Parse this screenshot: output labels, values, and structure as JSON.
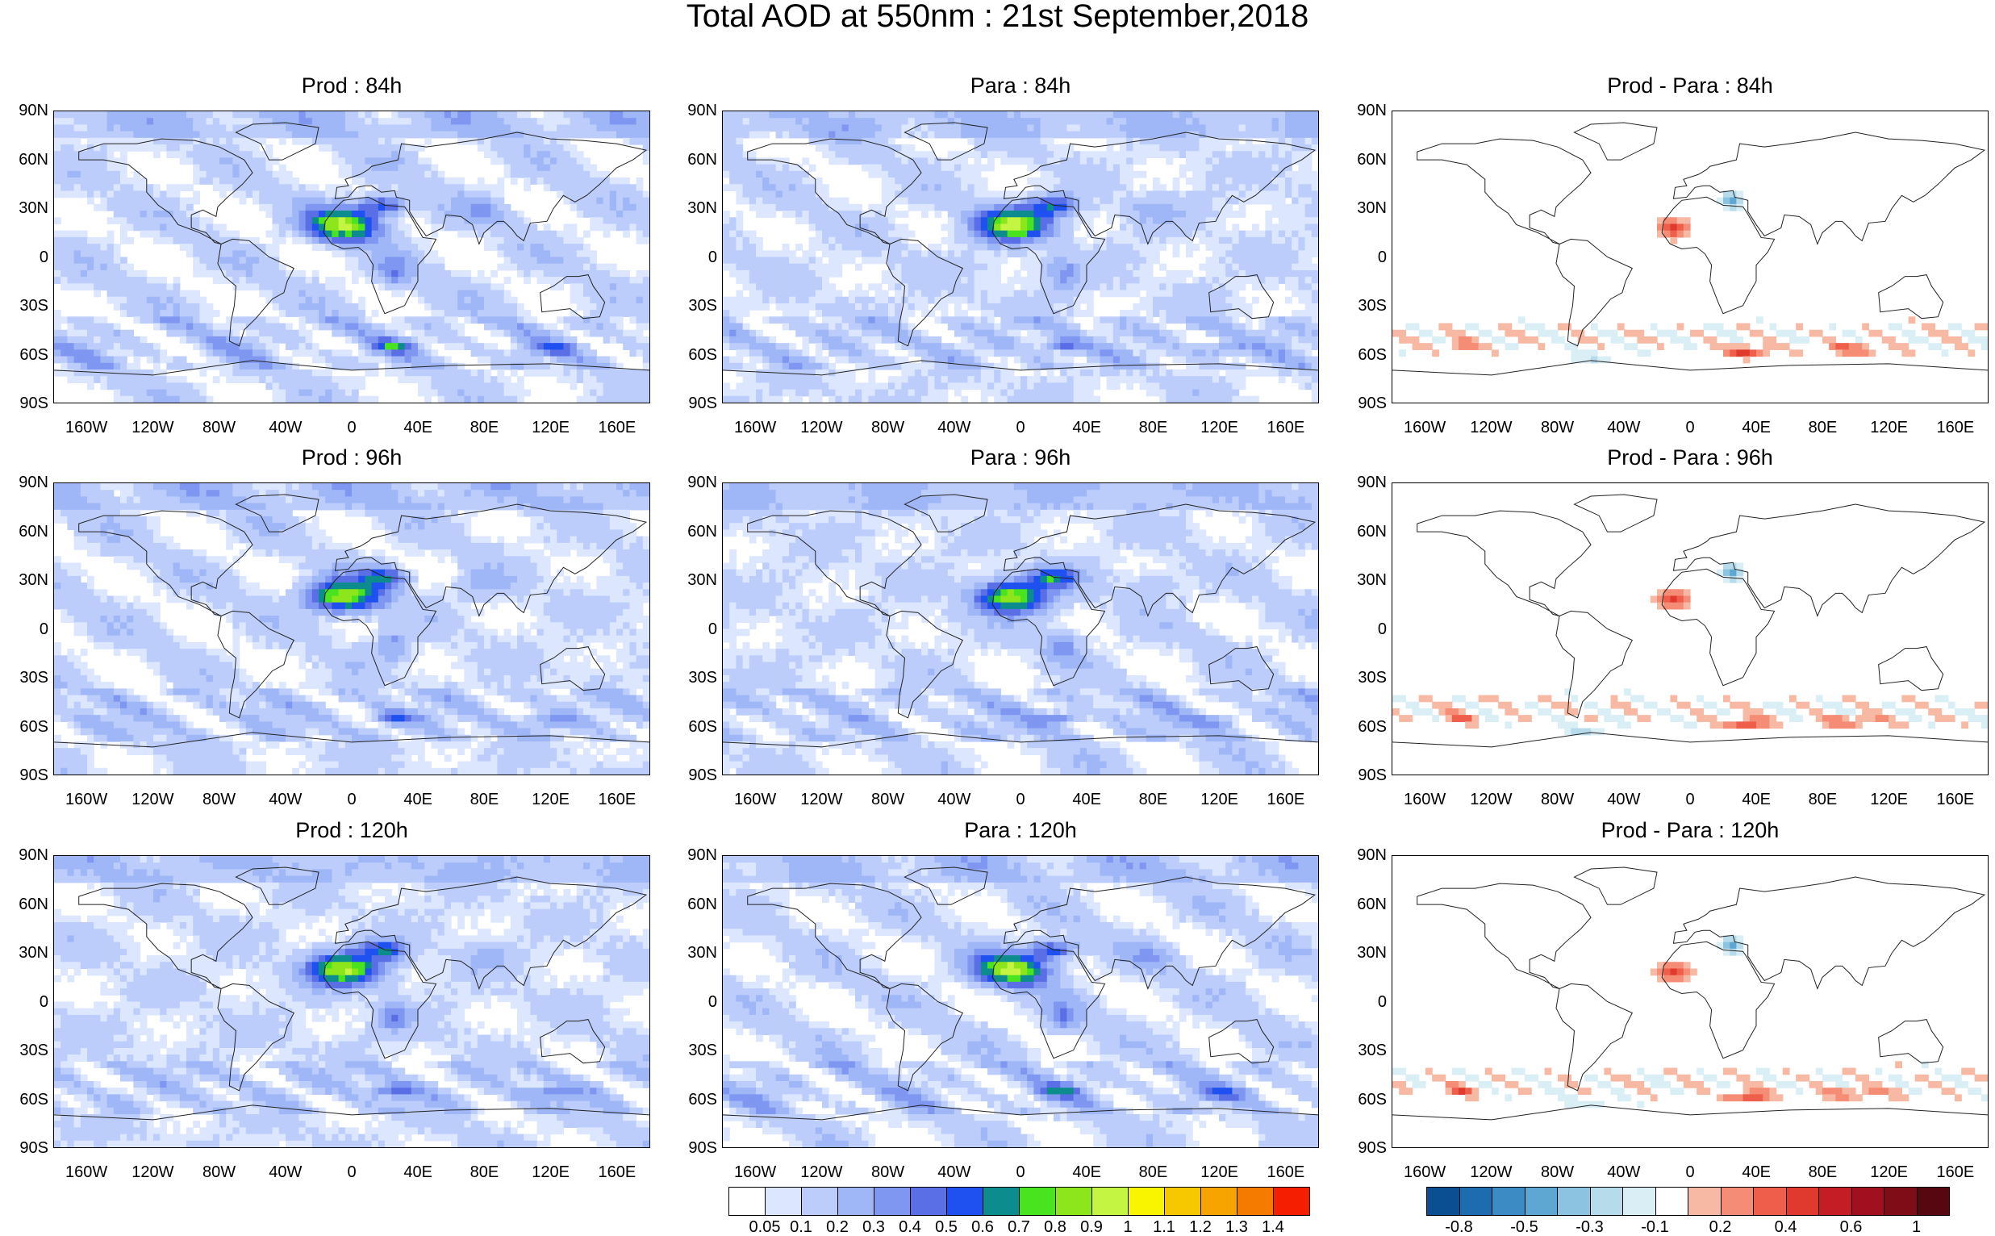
{
  "title": "Total AOD at 550nm : 21st September,2018",
  "lat_labels": [
    "90N",
    "60N",
    "30N",
    "0",
    "30S",
    "60S",
    "90S"
  ],
  "lon_labels": [
    "160W",
    "120W",
    "80W",
    "40W",
    "0",
    "40E",
    "80E",
    "120E",
    "160E"
  ],
  "rows": [
    {
      "panels": [
        {
          "title": "Prod : 84h",
          "kind": "aod"
        },
        {
          "title": "Para : 84h",
          "kind": "aod"
        },
        {
          "title": "Prod - Para : 84h",
          "kind": "diff"
        }
      ]
    },
    {
      "panels": [
        {
          "title": "Prod : 96h",
          "kind": "aod"
        },
        {
          "title": "Para : 96h",
          "kind": "aod"
        },
        {
          "title": "Prod - Para : 96h",
          "kind": "diff"
        }
      ]
    },
    {
      "panels": [
        {
          "title": "Prod : 120h",
          "kind": "aod"
        },
        {
          "title": "Para : 120h",
          "kind": "aod"
        },
        {
          "title": "Prod - Para : 120h",
          "kind": "diff"
        }
      ]
    }
  ],
  "aod_colorbar": {
    "labels": [
      "0.05",
      "0.1",
      "0.2",
      "0.3",
      "0.4",
      "0.5",
      "0.6",
      "0.7",
      "0.8",
      "0.9",
      "1",
      "1.1",
      "1.2",
      "1.3",
      "1.4"
    ],
    "colors": [
      "#ffffff",
      "#dce6ff",
      "#bccdfb",
      "#9fb6f7",
      "#7f97f0",
      "#5a6ee6",
      "#1f50f0",
      "#0c8c8c",
      "#49e31f",
      "#8ce61b",
      "#c3f542",
      "#f9f500",
      "#f7c800",
      "#f7a400",
      "#f57a00",
      "#f51f00"
    ]
  },
  "diff_colorbar": {
    "labels": [
      "-0.8",
      "-0.5",
      "-0.3",
      "-0.1",
      "0.2",
      "0.4",
      "0.6",
      "1"
    ],
    "colors": [
      "#0b4f93",
      "#1e6cb0",
      "#3c8bc4",
      "#5fa7d3",
      "#8cc3e0",
      "#b6dcec",
      "#daeef5",
      "#ffffff",
      "#f7b8a4",
      "#f58c75",
      "#ee5e4a",
      "#e03a2f",
      "#c41d25",
      "#a21020",
      "#7e0d17",
      "#570710"
    ]
  }
}
